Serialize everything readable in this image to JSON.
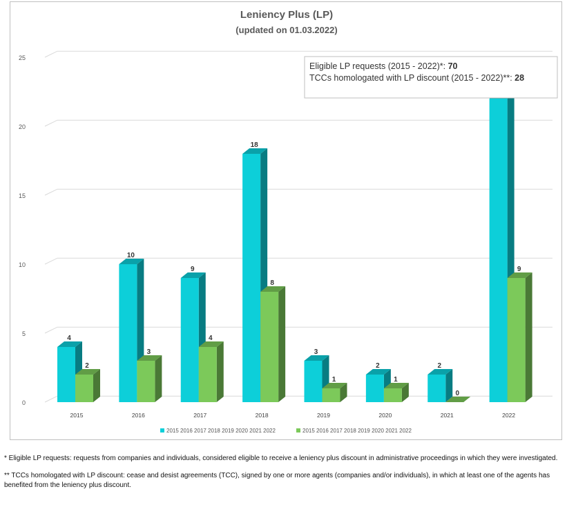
{
  "chart_data": {
    "type": "bar",
    "title": "Leniency Plus (LP)",
    "subtitle": "(updated  on 01.03.2022)",
    "categories": [
      "2015",
      "2016",
      "2017",
      "2018",
      "2019",
      "2020",
      "2021",
      "2022"
    ],
    "series": [
      {
        "name": "2015 2016 2017 2018 2019 2020 2021 2022",
        "color": "#0dcfd9",
        "values": [
          4,
          10,
          9,
          18,
          3,
          2,
          2,
          22
        ]
      },
      {
        "name": "2015 2016 2017 2018 2019 2020 2021 2022",
        "color": "#7cc95a",
        "values": [
          2,
          3,
          4,
          8,
          1,
          1,
          0,
          9
        ]
      }
    ],
    "yticks": [
      0,
      5,
      10,
      15,
      20,
      25
    ],
    "ylim": [
      0,
      25
    ],
    "xlabel": "",
    "ylabel": "",
    "grid": true,
    "legend": "bottom-center",
    "annotation": {
      "line1_text": "Eligible LP requests (2015 - 2022)*: ",
      "line1_value": "70",
      "line2_text": "TCCs homologated with LP discount (2015 - 2022)**: ",
      "line2_value": "28"
    }
  },
  "footnotes": {
    "note1": "* Eligible LP requests: requests from companies and individuals, considered eligible to receive a leniency plus discount in administrative proceedings in which they were investigated.",
    "note2": "** TCCs homologated with LP discount: cease and desist agreements (TCC), signed by one or more agents (companies and/or individuals), in which at least one of the agents has benefited from the leniency plus discount."
  }
}
